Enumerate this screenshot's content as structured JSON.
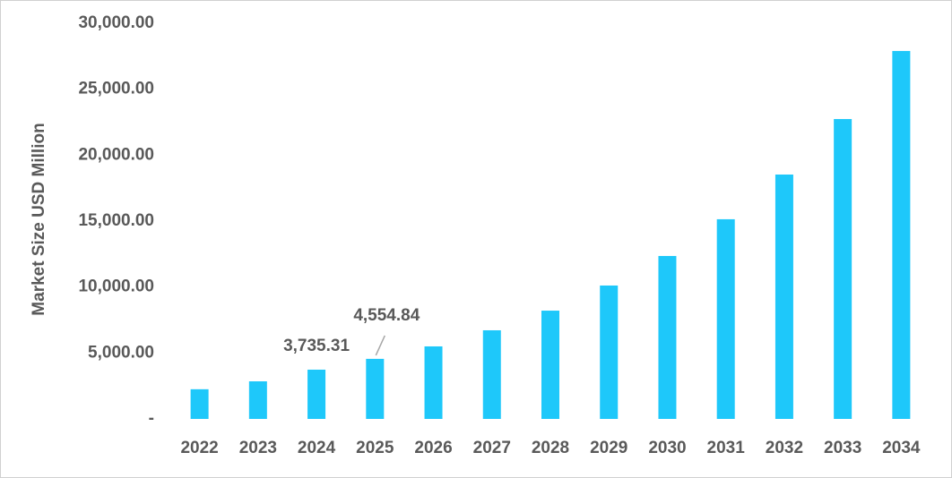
{
  "chart_data": {
    "type": "bar",
    "y_label": "Market Size USD Million",
    "categories": [
      "2022",
      "2023",
      "2024",
      "2025",
      "2026",
      "2027",
      "2028",
      "2029",
      "2030",
      "2031",
      "2032",
      "2033",
      "2034"
    ],
    "values": [
      2250,
      2850,
      3735.31,
      4554.84,
      5500,
      6720,
      8210,
      10115,
      12355,
      15140,
      18530,
      22740,
      27900
    ],
    "value_labels": [
      null,
      null,
      "3,735.31",
      "4,554.84",
      null,
      null,
      null,
      null,
      null,
      null,
      null,
      null,
      null
    ],
    "color": "#1ec8fa",
    "ylim": [
      0,
      30000
    ],
    "yticks": [
      {
        "value": 0,
        "label": "-"
      },
      {
        "value": 5000,
        "label": "5,000.00"
      },
      {
        "value": 10000,
        "label": "10,000.00"
      },
      {
        "value": 15000,
        "label": "15,000.00"
      },
      {
        "value": 20000,
        "label": "20,000.00"
      },
      {
        "value": 25000,
        "label": "25,000.00"
      },
      {
        "value": 30000,
        "label": "30,000.00"
      }
    ],
    "grid": false
  }
}
